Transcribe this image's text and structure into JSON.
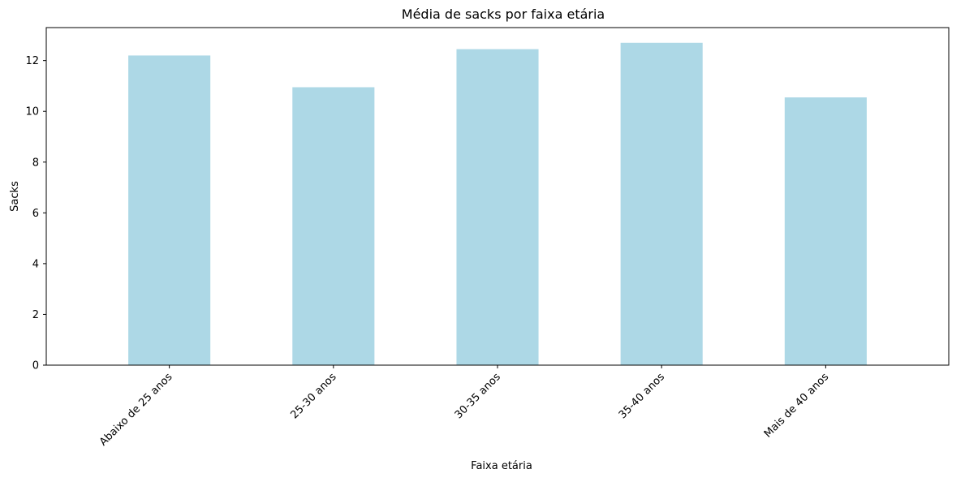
{
  "chart_data": {
    "type": "bar",
    "title": "Média de sacks por faixa etária",
    "xlabel": "Faixa etária",
    "ylabel": "Sacks",
    "categories": [
      "Abaixo de 25 anos",
      "25-30 anos",
      "30-35 anos",
      "35-40 anos",
      "Mais de 40 anos"
    ],
    "values": [
      12.2,
      10.95,
      12.45,
      12.7,
      10.55
    ],
    "ylim": [
      0,
      13.3
    ],
    "yticks": [
      0,
      2,
      4,
      6,
      8,
      10,
      12
    ],
    "grid": false,
    "legend": "none",
    "bar_color": "#add8e6"
  }
}
